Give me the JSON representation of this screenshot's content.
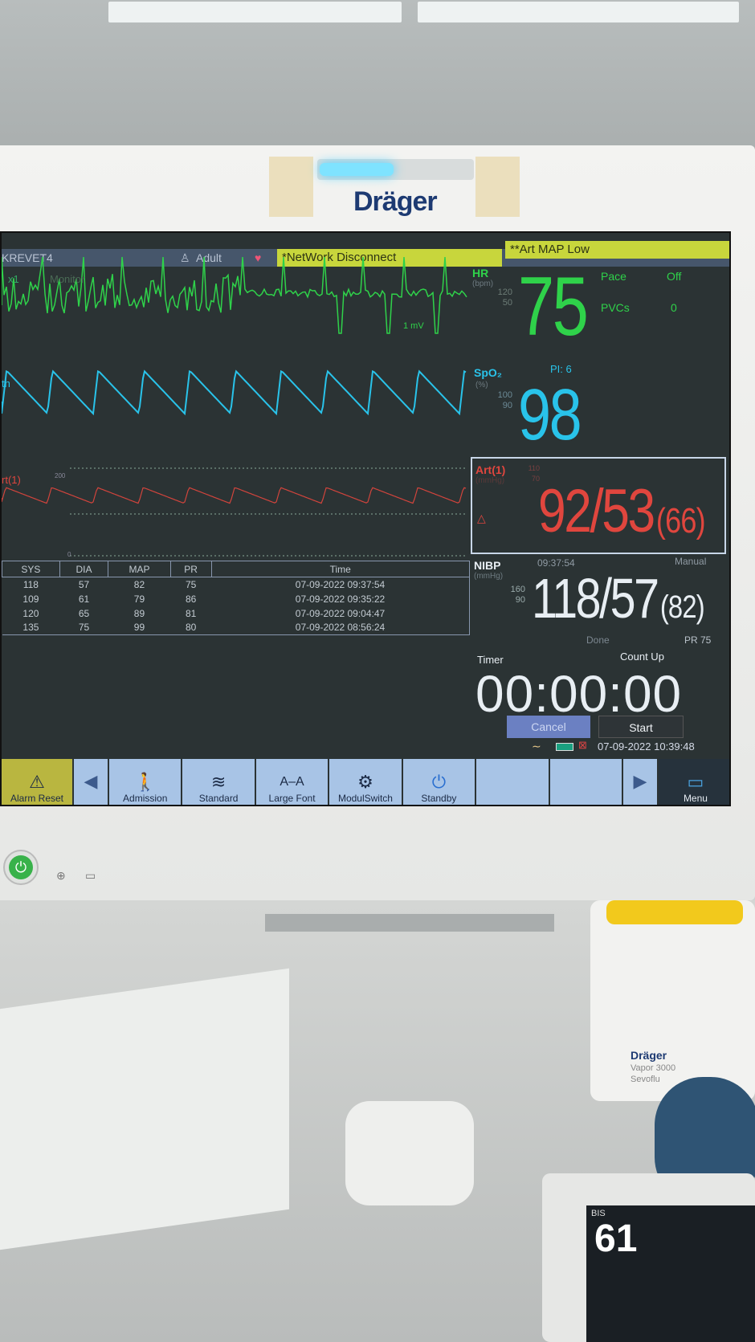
{
  "device": {
    "brand": "Dräger"
  },
  "header": {
    "bed": "KREVET4",
    "patient_type": "Adult",
    "alarm1": "*NetWork Disconnect",
    "alarm2": "**Art MAP Low"
  },
  "ecg": {
    "gain": "x1",
    "mode": "Monitor",
    "scale": "1 mV"
  },
  "pleth": {
    "label": "th"
  },
  "art_wave": {
    "label": "rt(1)",
    "top": "200",
    "bottom": "0"
  },
  "hr": {
    "label": "HR",
    "unit": "(bpm)",
    "high": "120",
    "low": "50",
    "value": "75",
    "pace_label": "Pace",
    "pace_value": "Off",
    "pvcs_label": "PVCs",
    "pvcs_value": "0"
  },
  "spo2": {
    "label": "SpO₂",
    "unit": "(%)",
    "high": "100",
    "low": "90",
    "value": "98",
    "pi": "PI: 6"
  },
  "art": {
    "label": "Art(1)",
    "unit": "(mmHg)",
    "high": "110",
    "low": "70",
    "value": "92/53",
    "mean": "(66)"
  },
  "nibp": {
    "label": "NIBP",
    "unit": "(mmHg)",
    "time": "09:37:54",
    "mode": "Manual",
    "high": "160",
    "low": "90",
    "value": "118/57",
    "mean": "(82)",
    "status": "Done",
    "pr": "PR 75"
  },
  "table": {
    "headers": [
      "SYS",
      "DIA",
      "MAP",
      "PR",
      "Time"
    ],
    "rows": [
      [
        "118",
        "57",
        "82",
        "75",
        "07-09-2022 09:37:54"
      ],
      [
        "109",
        "61",
        "79",
        "86",
        "07-09-2022 09:35:22"
      ],
      [
        "120",
        "65",
        "89",
        "81",
        "07-09-2022 09:04:47"
      ],
      [
        "135",
        "75",
        "99",
        "80",
        "07-09-2022 08:56:24"
      ]
    ]
  },
  "timer": {
    "label": "Timer",
    "mode": "Count Up",
    "value": "00:00:00",
    "cancel": "Cancel",
    "start": "Start"
  },
  "status": {
    "datetime": "07-09-2022 10:39:48"
  },
  "toolbar": {
    "alarm_reset": "Alarm Reset",
    "admission": "Admission",
    "standard": "Standard",
    "large_font": "Large Font",
    "modul_switch": "ModulSwitch",
    "standby": "Standby",
    "menu": "Menu"
  },
  "colors": {
    "hr": "#2fd24a",
    "spo2": "#29c3ea",
    "art": "#e0463e",
    "alarm": "#c8d63c"
  },
  "bis": {
    "value": "61",
    "label": "BIS"
  },
  "vapor": {
    "brand": "Dräger",
    "model": "Vapor 3000",
    "agent": "Sevoflu"
  }
}
